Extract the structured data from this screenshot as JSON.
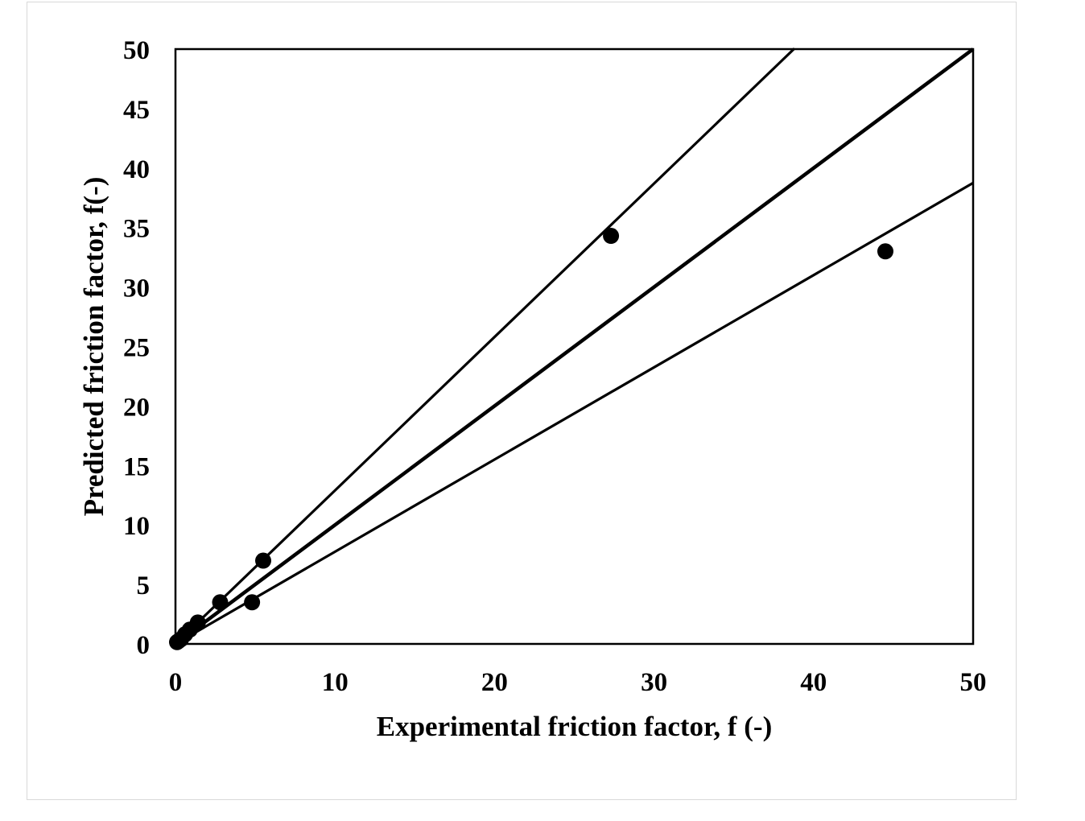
{
  "chart_data": {
    "type": "scatter",
    "title": "",
    "xlabel": "Experimental friction factor, f (-)",
    "ylabel": "Predicted friction factor, f(-)",
    "xlim": [
      0,
      50
    ],
    "ylim": [
      0,
      50
    ],
    "x_ticks": [
      "0",
      "10",
      "20",
      "30",
      "40",
      "50"
    ],
    "y_ticks": [
      "0",
      "5",
      "10",
      "15",
      "20",
      "25",
      "30",
      "35",
      "40",
      "45",
      "50"
    ],
    "grid": false,
    "legend": "none",
    "points": [
      {
        "x": 0.1,
        "y": 0.15
      },
      {
        "x": 0.2,
        "y": 0.25
      },
      {
        "x": 0.35,
        "y": 0.4
      },
      {
        "x": 0.6,
        "y": 0.8
      },
      {
        "x": 0.9,
        "y": 1.2
      },
      {
        "x": 1.4,
        "y": 1.8
      },
      {
        "x": 2.8,
        "y": 3.5
      },
      {
        "x": 4.8,
        "y": 3.5
      },
      {
        "x": 5.5,
        "y": 7.0
      },
      {
        "x": 27.3,
        "y": 34.3
      },
      {
        "x": 44.5,
        "y": 33.0
      }
    ],
    "reference_lines": [
      {
        "slope": 1.0,
        "x_range": [
          0,
          50
        ],
        "style": "thick"
      },
      {
        "slope": 1.29,
        "x_range": [
          0,
          38.8
        ],
        "style": "normal"
      },
      {
        "slope": 0.775,
        "x_range": [
          0,
          50
        ],
        "style": "normal"
      }
    ],
    "colors": {
      "marker": "#000000",
      "line": "#000000",
      "frame_border": "#d9d9d9"
    }
  }
}
